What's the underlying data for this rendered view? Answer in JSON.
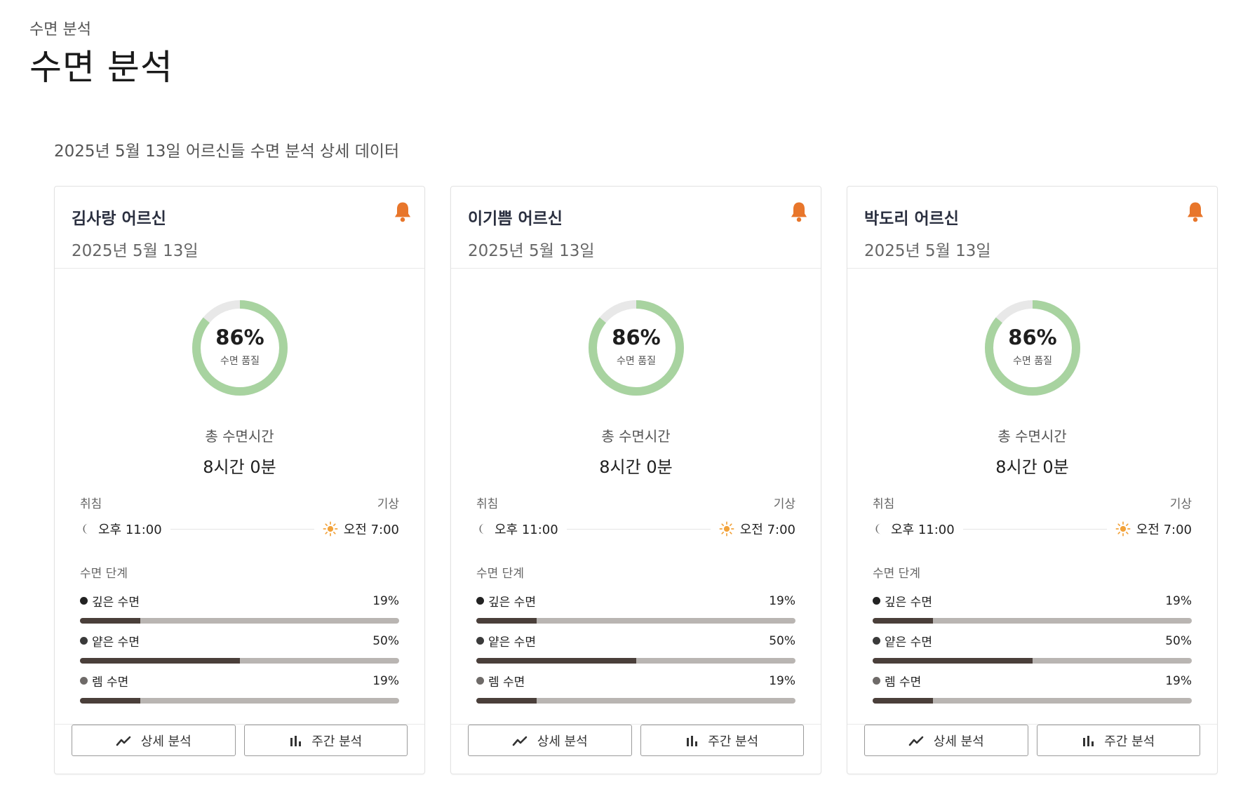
{
  "header": {
    "breadcrumb": "수면 분석",
    "title": "수면 분석",
    "subtitle": "2025년 5월 13일 어르신들 수면 분석 상세 데이터"
  },
  "colors": {
    "ring_fill": "#a8d3a0",
    "ring_track": "#e8e8e8",
    "bell": "#e8762b",
    "bar_fill": "#4a3f3a",
    "bar_track": "#b9b5b2"
  },
  "cards": [
    {
      "name": "김사랑 어르신",
      "date": "2025년 5월 13일",
      "quality_value": 86,
      "quality_text": "86%",
      "quality_label": "수면 품질",
      "total_label": "총 수면시간",
      "total_value": "8시간 0분",
      "bedtime_label": "취침",
      "wake_label": "기상",
      "bedtime": "오후 11:00",
      "waketime": "오전 7:00",
      "stage_title": "수면 단계",
      "stages": [
        {
          "name": "깊은 수면",
          "percent": 19,
          "percent_text": "19%",
          "dot": "#222222"
        },
        {
          "name": "얕은 수면",
          "percent": 50,
          "percent_text": "50%",
          "dot": "#3a3a3a"
        },
        {
          "name": "렘 수면",
          "percent": 19,
          "percent_text": "19%",
          "dot": "#6e6a68"
        }
      ],
      "detail_button": "상세 분석",
      "weekly_button": "주간 분석"
    },
    {
      "name": "이기쁨 어르신",
      "date": "2025년 5월 13일",
      "quality_value": 86,
      "quality_text": "86%",
      "quality_label": "수면 품질",
      "total_label": "총 수면시간",
      "total_value": "8시간 0분",
      "bedtime_label": "취침",
      "wake_label": "기상",
      "bedtime": "오후 11:00",
      "waketime": "오전 7:00",
      "stage_title": "수면 단계",
      "stages": [
        {
          "name": "깊은 수면",
          "percent": 19,
          "percent_text": "19%",
          "dot": "#222222"
        },
        {
          "name": "얕은 수면",
          "percent": 50,
          "percent_text": "50%",
          "dot": "#3a3a3a"
        },
        {
          "name": "렘 수면",
          "percent": 19,
          "percent_text": "19%",
          "dot": "#6e6a68"
        }
      ],
      "detail_button": "상세 분석",
      "weekly_button": "주간 분석"
    },
    {
      "name": "박도리 어르신",
      "date": "2025년 5월 13일",
      "quality_value": 86,
      "quality_text": "86%",
      "quality_label": "수면 품질",
      "total_label": "총 수면시간",
      "total_value": "8시간 0분",
      "bedtime_label": "취침",
      "wake_label": "기상",
      "bedtime": "오후 11:00",
      "waketime": "오전 7:00",
      "stage_title": "수면 단계",
      "stages": [
        {
          "name": "깊은 수면",
          "percent": 19,
          "percent_text": "19%",
          "dot": "#222222"
        },
        {
          "name": "얕은 수면",
          "percent": 50,
          "percent_text": "50%",
          "dot": "#3a3a3a"
        },
        {
          "name": "렘 수면",
          "percent": 19,
          "percent_text": "19%",
          "dot": "#6e6a68"
        }
      ],
      "detail_button": "상세 분석",
      "weekly_button": "주간 분석"
    }
  ]
}
